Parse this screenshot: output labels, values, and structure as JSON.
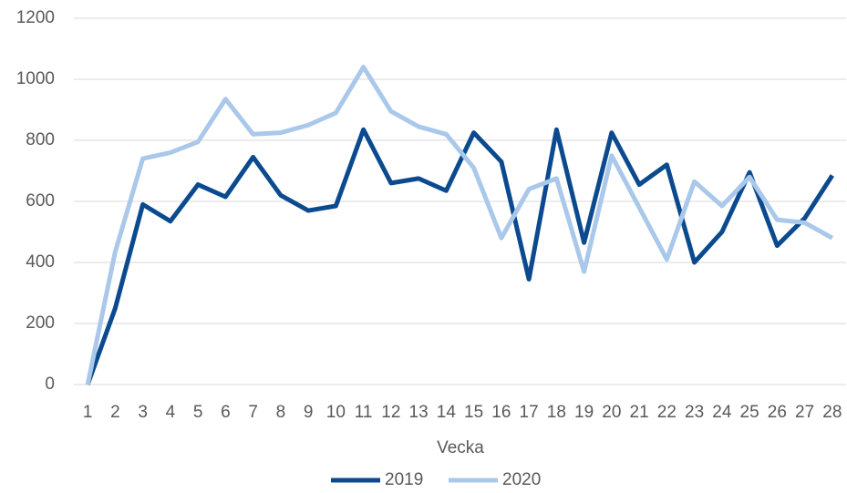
{
  "chart_data": {
    "type": "line",
    "x_label": "Vecka",
    "categories": [
      1,
      2,
      3,
      4,
      5,
      6,
      7,
      8,
      9,
      10,
      11,
      12,
      13,
      14,
      15,
      16,
      17,
      18,
      19,
      20,
      21,
      22,
      23,
      24,
      25,
      26,
      27,
      28
    ],
    "series": [
      {
        "name": "2019",
        "color": "#0b4a8f",
        "values": [
          0,
          250,
          590,
          535,
          655,
          615,
          745,
          620,
          570,
          585,
          835,
          660,
          675,
          635,
          825,
          730,
          345,
          835,
          465,
          825,
          655,
          720,
          400,
          500,
          695,
          455,
          545,
          685
        ]
      },
      {
        "name": "2020",
        "color": "#a9c8ea",
        "values": [
          0,
          435,
          740,
          760,
          795,
          935,
          820,
          825,
          850,
          890,
          1040,
          895,
          845,
          820,
          710,
          480,
          640,
          675,
          370,
          750,
          580,
          410,
          665,
          585,
          680,
          540,
          530,
          480
        ]
      }
    ],
    "ylim": [
      0,
      1200
    ],
    "yticks": [
      0,
      200,
      400,
      600,
      800,
      1000,
      1200
    ],
    "grid": true
  }
}
